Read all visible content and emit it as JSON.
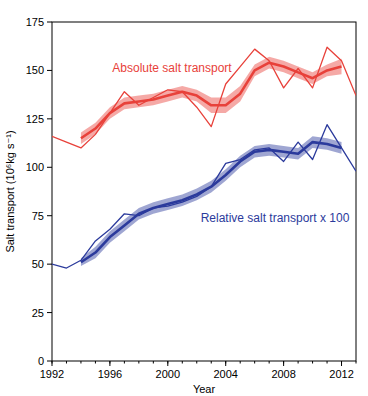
{
  "chart_data": {
    "type": "line",
    "xlabel": "Year",
    "ylabel": "Salt transport (10⁶kg s⁻¹)",
    "xlim": [
      1992,
      2013
    ],
    "xticks": [
      1992,
      1996,
      2000,
      2004,
      2008,
      2012
    ],
    "ylim": [
      0,
      175
    ],
    "yticks": [
      0,
      25,
      50,
      75,
      100,
      125,
      150,
      175
    ],
    "grid": false,
    "series": [
      {
        "name": "Absolute salt transport",
        "color": "#e8413a",
        "x": [
          1994,
          1995,
          1996,
          1997,
          1998,
          1999,
          2000,
          2001,
          2002,
          2003,
          2004,
          2005,
          2006,
          2007,
          2008,
          2009,
          2010,
          2011,
          2012
        ],
        "values": [
          115,
          120,
          128,
          133,
          134,
          135,
          137,
          139,
          137,
          132,
          132,
          138,
          150,
          154,
          152,
          149,
          146,
          150,
          152
        ],
        "lower": [
          112,
          117,
          125,
          130,
          131,
          132,
          134,
          136,
          134,
          128,
          128,
          134,
          147,
          151,
          149,
          146,
          143,
          147,
          148
        ],
        "upper": [
          118,
          123,
          131,
          136,
          137,
          138,
          140,
          142,
          140,
          136,
          136,
          142,
          153,
          157,
          155,
          152,
          149,
          153,
          156
        ]
      },
      {
        "color": "#e8413a",
        "line_style": "thin",
        "x": [
          1992,
          1993,
          1994,
          1995,
          1996,
          1997,
          1998,
          1999,
          2000,
          2001,
          2002,
          2003,
          2004,
          2005,
          2006,
          2007,
          2008,
          2009,
          2010,
          2011,
          2012,
          2013
        ],
        "values": [
          116,
          113,
          110,
          117,
          128,
          139,
          132,
          136,
          140,
          139,
          131,
          121,
          143,
          152,
          161,
          155,
          141,
          151,
          141,
          162,
          155,
          137
        ]
      },
      {
        "name": "Relative salt transport x 100",
        "color": "#2b3a9c",
        "x": [
          1994,
          1995,
          1996,
          1997,
          1998,
          1999,
          2000,
          2001,
          2002,
          2003,
          2004,
          2005,
          2006,
          2007,
          2008,
          2009,
          2010,
          2011,
          2012
        ],
        "values": [
          51,
          56,
          64,
          70,
          76,
          79,
          81,
          83,
          86,
          90,
          96,
          103,
          108,
          109,
          108,
          107,
          113,
          112,
          110
        ],
        "lower": [
          49,
          53,
          61,
          67,
          73,
          76,
          78,
          80,
          83,
          87,
          93,
          100,
          105,
          106,
          105,
          104,
          110,
          109,
          107
        ],
        "upper": [
          53,
          59,
          67,
          73,
          79,
          82,
          84,
          86,
          89,
          93,
          99,
          106,
          111,
          112,
          111,
          110,
          116,
          115,
          113
        ]
      },
      {
        "color": "#2b3a9c",
        "line_style": "thin",
        "x": [
          1992,
          1993,
          1994,
          1995,
          1996,
          1997,
          1998,
          1999,
          2000,
          2001,
          2002,
          2003,
          2004,
          2005,
          2006,
          2007,
          2008,
          2009,
          2010,
          2011,
          2012,
          2013
        ],
        "values": [
          50,
          48,
          52,
          62,
          68,
          76,
          75,
          79,
          80,
          82,
          85,
          90,
          102,
          104,
          109,
          110,
          103,
          113,
          104,
          122,
          110,
          98
        ]
      }
    ]
  }
}
